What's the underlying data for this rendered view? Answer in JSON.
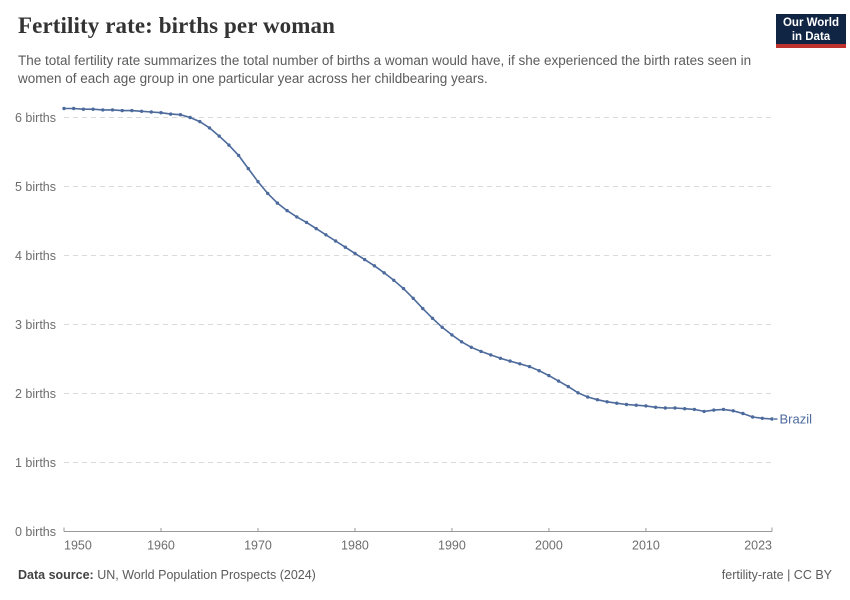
{
  "header": {
    "title": "Fertility rate: births per woman",
    "subtitle": "The total fertility rate summarizes the total number of births a woman would have, if she experienced the birth rates seen in women of each age group in one particular year across her childbearing years.",
    "logo": {
      "line1": "Our World",
      "line2": "in Data",
      "bg_color": "#102544",
      "stripe_color": "#be322d"
    }
  },
  "chart_data": {
    "type": "line",
    "title": "Fertility rate: births per woman",
    "xlabel": "",
    "ylabel": "",
    "xlim": [
      1950,
      2023
    ],
    "ylim": [
      0,
      6.4
    ],
    "grid": true,
    "grid_style": "dashed",
    "legend_position": "end-of-line",
    "x_ticks": [
      1950,
      1960,
      1970,
      1980,
      1990,
      2000,
      2010,
      2023
    ],
    "x_tick_labels": [
      "1950",
      "1960",
      "1970",
      "1980",
      "1990",
      "2000",
      "2010",
      "2023"
    ],
    "y_ticks": [
      0,
      1,
      2,
      3,
      4,
      5,
      6
    ],
    "y_tick_labels": [
      "0 births",
      "1 births",
      "2 births",
      "3 births",
      "4 births",
      "5 births",
      "6 births"
    ],
    "series": [
      {
        "name": "Brazil",
        "color": "#4c6a9c",
        "x": [
          1950,
          1951,
          1952,
          1953,
          1954,
          1955,
          1956,
          1957,
          1958,
          1959,
          1960,
          1961,
          1962,
          1963,
          1964,
          1965,
          1966,
          1967,
          1968,
          1969,
          1970,
          1971,
          1972,
          1973,
          1974,
          1975,
          1976,
          1977,
          1978,
          1979,
          1980,
          1981,
          1982,
          1983,
          1984,
          1985,
          1986,
          1987,
          1988,
          1989,
          1990,
          1991,
          1992,
          1993,
          1994,
          1995,
          1996,
          1997,
          1998,
          1999,
          2000,
          2001,
          2002,
          2003,
          2004,
          2005,
          2006,
          2007,
          2008,
          2009,
          2010,
          2011,
          2012,
          2013,
          2014,
          2015,
          2016,
          2017,
          2018,
          2019,
          2020,
          2021,
          2022,
          2023
        ],
        "y": [
          6.13,
          6.13,
          6.12,
          6.12,
          6.11,
          6.11,
          6.1,
          6.1,
          6.09,
          6.08,
          6.07,
          6.05,
          6.04,
          6.0,
          5.94,
          5.85,
          5.73,
          5.6,
          5.45,
          5.26,
          5.07,
          4.9,
          4.76,
          4.65,
          4.56,
          4.48,
          4.39,
          4.3,
          4.21,
          4.12,
          4.03,
          3.94,
          3.85,
          3.75,
          3.64,
          3.52,
          3.38,
          3.23,
          3.09,
          2.96,
          2.85,
          2.75,
          2.67,
          2.61,
          2.56,
          2.51,
          2.47,
          2.43,
          2.39,
          2.33,
          2.26,
          2.18,
          2.1,
          2.01,
          1.95,
          1.91,
          1.88,
          1.86,
          1.84,
          1.83,
          1.82,
          1.8,
          1.79,
          1.79,
          1.78,
          1.77,
          1.74,
          1.76,
          1.77,
          1.75,
          1.71,
          1.66,
          1.64,
          1.63
        ]
      }
    ]
  },
  "footer": {
    "source_label": "Data source:",
    "source_value": "UN, World Population Prospects (2024)",
    "license": "fertility-rate | CC BY"
  }
}
